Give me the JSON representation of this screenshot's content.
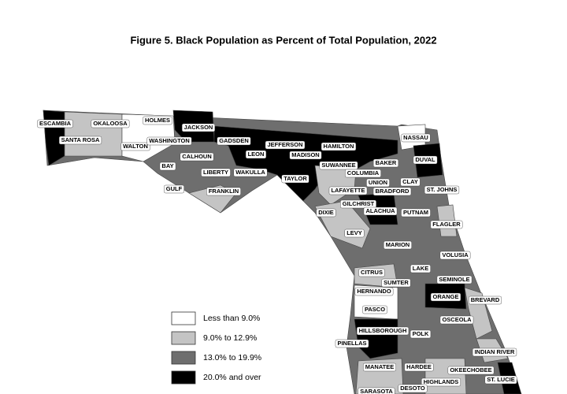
{
  "title": "Figure 5. Black Population as Percent of Total Population, 2022",
  "legend": [
    {
      "label": "Less than 9.0%",
      "color": "#ffffff"
    },
    {
      "label": "9.0% to 12.9%",
      "color": "#c4c4c4"
    },
    {
      "label": "13.0% to 19.9%",
      "color": "#6e6e6e"
    },
    {
      "label": "20.0% and over",
      "color": "#000000"
    }
  ],
  "counties": [
    "ESCAMBIA",
    "OKALOOSA",
    "HOLMES",
    "JACKSON",
    "SANTA ROSA",
    "WALTON",
    "WASHINGTON",
    "GADSDEN",
    "JEFFERSON",
    "HAMILTON",
    "NASSAU",
    "MADISON",
    "CALHOUN",
    "BAY",
    "LEON",
    "SUWANNEE",
    "BAKER",
    "DUVAL",
    "COLUMBIA",
    "LIBERTY",
    "WAKULLA",
    "TAYLOR",
    "UNION",
    "CLAY",
    "GULF",
    "FRANKLIN",
    "ST. JOHNS",
    "LAFAYETTE",
    "BRADFORD",
    "GILCHRIST",
    "DIXIE",
    "ALACHUA",
    "PUTNAM",
    "FLAGLER",
    "LEVY",
    "MARION",
    "VOLUSIA",
    "LAKE",
    "CITRUS",
    "SEMINOLE",
    "SUMTER",
    "HERNANDO",
    "ORANGE",
    "BREVARD",
    "PASCO",
    "OSCEOLA",
    "HILLSBOROUGH",
    "POLK",
    "PINELLAS",
    "INDIAN RIVER",
    "MANATEE",
    "HARDEE",
    "OKEECHOBEE",
    "HIGHLANDS",
    "ST. LUCIE",
    "SARASOTA",
    "DESOTO"
  ]
}
